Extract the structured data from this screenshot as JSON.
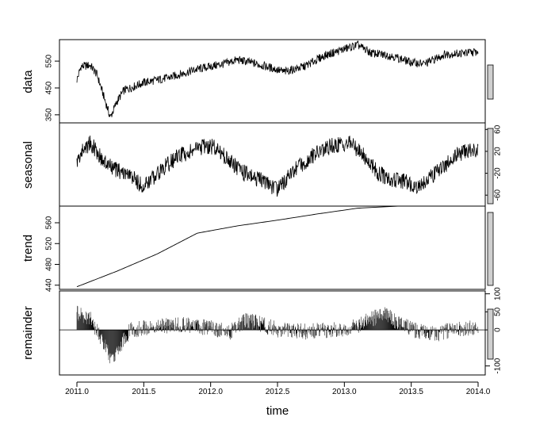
{
  "chart_data": {
    "type": "line",
    "xlabel": "time",
    "x_ticks": [
      "2011.0",
      "2011.5",
      "2012.0",
      "2012.5",
      "2013.0",
      "2013.5",
      "2014.0"
    ],
    "xlim": [
      2011.0,
      2014.0
    ],
    "panels": [
      {
        "ylabel": "data",
        "ylim": [
          320,
          630
        ],
        "y_ticks": [
          "350",
          "450",
          "550"
        ],
        "tick_side": "left",
        "series_knots": [
          [
            2011.0,
            480
          ],
          [
            2011.03,
            530
          ],
          [
            2011.1,
            535
          ],
          [
            2011.15,
            500
          ],
          [
            2011.2,
            420
          ],
          [
            2011.25,
            340
          ],
          [
            2011.3,
            400
          ],
          [
            2011.35,
            440
          ],
          [
            2011.5,
            470
          ],
          [
            2011.7,
            490
          ],
          [
            2011.9,
            520
          ],
          [
            2012.1,
            540
          ],
          [
            2012.2,
            555
          ],
          [
            2012.3,
            545
          ],
          [
            2012.45,
            525
          ],
          [
            2012.55,
            510
          ],
          [
            2012.7,
            530
          ],
          [
            2012.85,
            570
          ],
          [
            2013.0,
            595
          ],
          [
            2013.1,
            610
          ],
          [
            2013.2,
            580
          ],
          [
            2013.35,
            570
          ],
          [
            2013.5,
            545
          ],
          [
            2013.6,
            540
          ],
          [
            2013.75,
            575
          ],
          [
            2013.9,
            580
          ],
          [
            2014.0,
            585
          ]
        ]
      },
      {
        "ylabel": "seasonal",
        "ylim": [
          -80,
          72
        ],
        "y_ticks": [
          "-60",
          "-20",
          "20",
          "60"
        ],
        "tick_side": "right",
        "series_knots": [
          [
            2011.0,
            0
          ],
          [
            2011.05,
            25
          ],
          [
            2011.1,
            35
          ],
          [
            2011.15,
            20
          ],
          [
            2011.2,
            0
          ],
          [
            2011.3,
            -15
          ],
          [
            2011.4,
            -25
          ],
          [
            2011.5,
            -45
          ],
          [
            2011.6,
            -20
          ],
          [
            2011.75,
            10
          ],
          [
            2011.9,
            25
          ],
          [
            2012.0,
            30
          ],
          [
            2012.05,
            25
          ],
          [
            2012.15,
            0
          ],
          [
            2012.25,
            -20
          ],
          [
            2012.4,
            -35
          ],
          [
            2012.5,
            -50
          ],
          [
            2012.6,
            -20
          ],
          [
            2012.75,
            10
          ],
          [
            2012.9,
            30
          ],
          [
            2013.05,
            35
          ],
          [
            2013.15,
            10
          ],
          [
            2013.25,
            -20
          ],
          [
            2013.35,
            -30
          ],
          [
            2013.45,
            -35
          ],
          [
            2013.55,
            -45
          ],
          [
            2013.7,
            -15
          ],
          [
            2013.85,
            15
          ],
          [
            2014.0,
            25
          ]
        ]
      },
      {
        "ylabel": "trend",
        "ylim": [
          432,
          592
        ],
        "y_ticks": [
          "440",
          "480",
          "520",
          "560"
        ],
        "tick_side": "left",
        "series_knots": [
          [
            2011.0,
            437
          ],
          [
            2011.3,
            467
          ],
          [
            2011.6,
            500
          ],
          [
            2011.9,
            540
          ],
          [
            2012.2,
            554
          ],
          [
            2012.5,
            565
          ],
          [
            2012.8,
            577
          ],
          [
            2013.1,
            588
          ],
          [
            2013.4,
            592
          ],
          [
            2013.7,
            594
          ],
          [
            2014.0,
            595
          ]
        ]
      },
      {
        "ylabel": "remainder",
        "ylim": [
          -125,
          108
        ],
        "y_ticks": [
          "-100",
          "0",
          "50",
          "100"
        ],
        "tick_side": "right",
        "zero_line": true,
        "series_knots": [
          [
            2011.0,
            45
          ],
          [
            2011.1,
            30
          ],
          [
            2011.15,
            0
          ],
          [
            2011.2,
            -40
          ],
          [
            2011.27,
            -90
          ],
          [
            2011.32,
            -45
          ],
          [
            2011.4,
            0
          ],
          [
            2011.6,
            10
          ],
          [
            2011.8,
            15
          ],
          [
            2012.0,
            5
          ],
          [
            2012.15,
            -5
          ],
          [
            2012.25,
            25
          ],
          [
            2012.35,
            20
          ],
          [
            2012.5,
            0
          ],
          [
            2012.7,
            -5
          ],
          [
            2012.9,
            0
          ],
          [
            2013.05,
            5
          ],
          [
            2013.2,
            30
          ],
          [
            2013.3,
            45
          ],
          [
            2013.4,
            20
          ],
          [
            2013.55,
            -5
          ],
          [
            2013.7,
            -10
          ],
          [
            2013.85,
            5
          ],
          [
            2014.0,
            5
          ]
        ]
      }
    ]
  }
}
